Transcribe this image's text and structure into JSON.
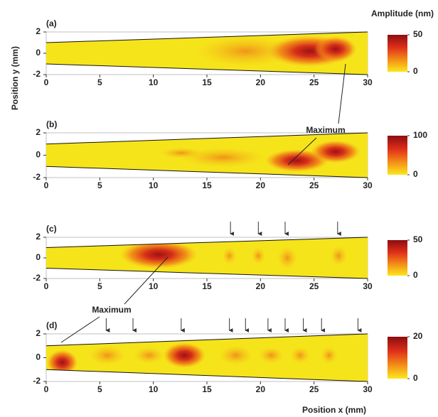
{
  "chart_data": [
    {
      "type": "heatmap",
      "panel_label": "(a)",
      "colorbar_title": "Amplitude (nm)",
      "ylabel": "Position y (mm)",
      "xlim": [
        0,
        30
      ],
      "ylim": [
        -2,
        2
      ],
      "xticks": [
        0,
        5,
        10,
        15,
        20,
        25,
        30
      ],
      "yticks": [
        -2,
        0,
        2
      ],
      "colorbar_lim": [
        0,
        50
      ],
      "colorbar_ticks": [
        0,
        50
      ]
    },
    {
      "type": "heatmap",
      "panel_label": "(b)",
      "annotation": "Maximum",
      "xlim": [
        0,
        30
      ],
      "ylim": [
        -2,
        2
      ],
      "xticks": [
        0,
        5,
        10,
        15,
        20,
        25,
        30
      ],
      "yticks": [
        -2,
        0,
        2
      ],
      "colorbar_lim": [
        0,
        100
      ],
      "colorbar_ticks": [
        0,
        100
      ]
    },
    {
      "type": "heatmap",
      "panel_label": "(c)",
      "xlim": [
        0,
        30
      ],
      "ylim": [
        -2,
        2
      ],
      "xticks": [
        0,
        5,
        10,
        15,
        20,
        25,
        30
      ],
      "yticks": [
        -2,
        0,
        2
      ],
      "colorbar_lim": [
        0,
        50
      ],
      "colorbar_ticks": [
        0,
        50
      ],
      "arrows_x": [
        17.2,
        19.8,
        22.3,
        27.2
      ]
    },
    {
      "type": "heatmap",
      "panel_label": "(d)",
      "annotation": "Maximum",
      "xlabel": "Position x (mm)",
      "xlim": [
        0,
        30
      ],
      "ylim": [
        -2,
        2
      ],
      "xticks": [
        0,
        5,
        10,
        15,
        20,
        25,
        30
      ],
      "yticks": [
        -2,
        0,
        2
      ],
      "colorbar_lim": [
        0,
        20
      ],
      "colorbar_ticks": [
        0,
        20
      ],
      "arrows_x": [
        5.6,
        8.1,
        12.6,
        17.1,
        18.6,
        20.7,
        22.3,
        24.0,
        25.7,
        29.1
      ]
    }
  ]
}
